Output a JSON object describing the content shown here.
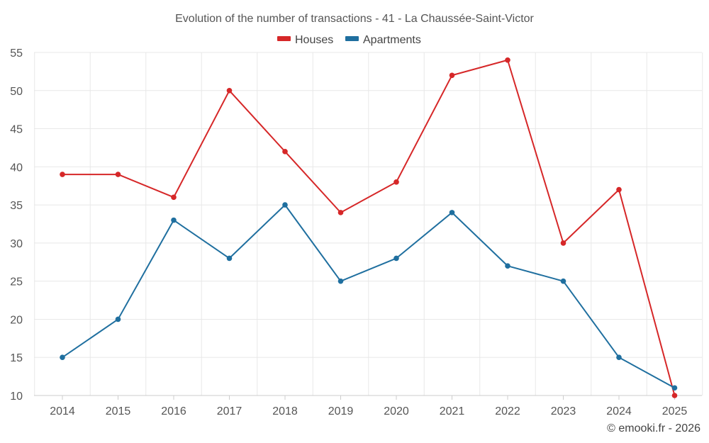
{
  "chart_data": {
    "type": "line",
    "title": "Evolution of the number of transactions - 41 - La Chaussée-Saint-Victor",
    "categories": [
      "2014",
      "2015",
      "2016",
      "2017",
      "2018",
      "2019",
      "2020",
      "2021",
      "2022",
      "2023",
      "2024",
      "2025"
    ],
    "series": [
      {
        "name": "Houses",
        "color": "#d62728",
        "values": [
          39,
          39,
          36,
          50,
          42,
          34,
          38,
          52,
          54,
          30,
          37,
          10
        ]
      },
      {
        "name": "Apartments",
        "color": "#1f6f9f",
        "values": [
          15,
          20,
          33,
          28,
          35,
          25,
          28,
          34,
          27,
          25,
          15,
          11
        ]
      }
    ],
    "ylim": [
      10,
      55
    ],
    "yticks": [
      10,
      15,
      20,
      25,
      30,
      35,
      40,
      45,
      50,
      55
    ],
    "xlabel": "",
    "ylabel": "",
    "grid": true,
    "legend": "top-center"
  },
  "credit": "© emooki.fr - 2026"
}
